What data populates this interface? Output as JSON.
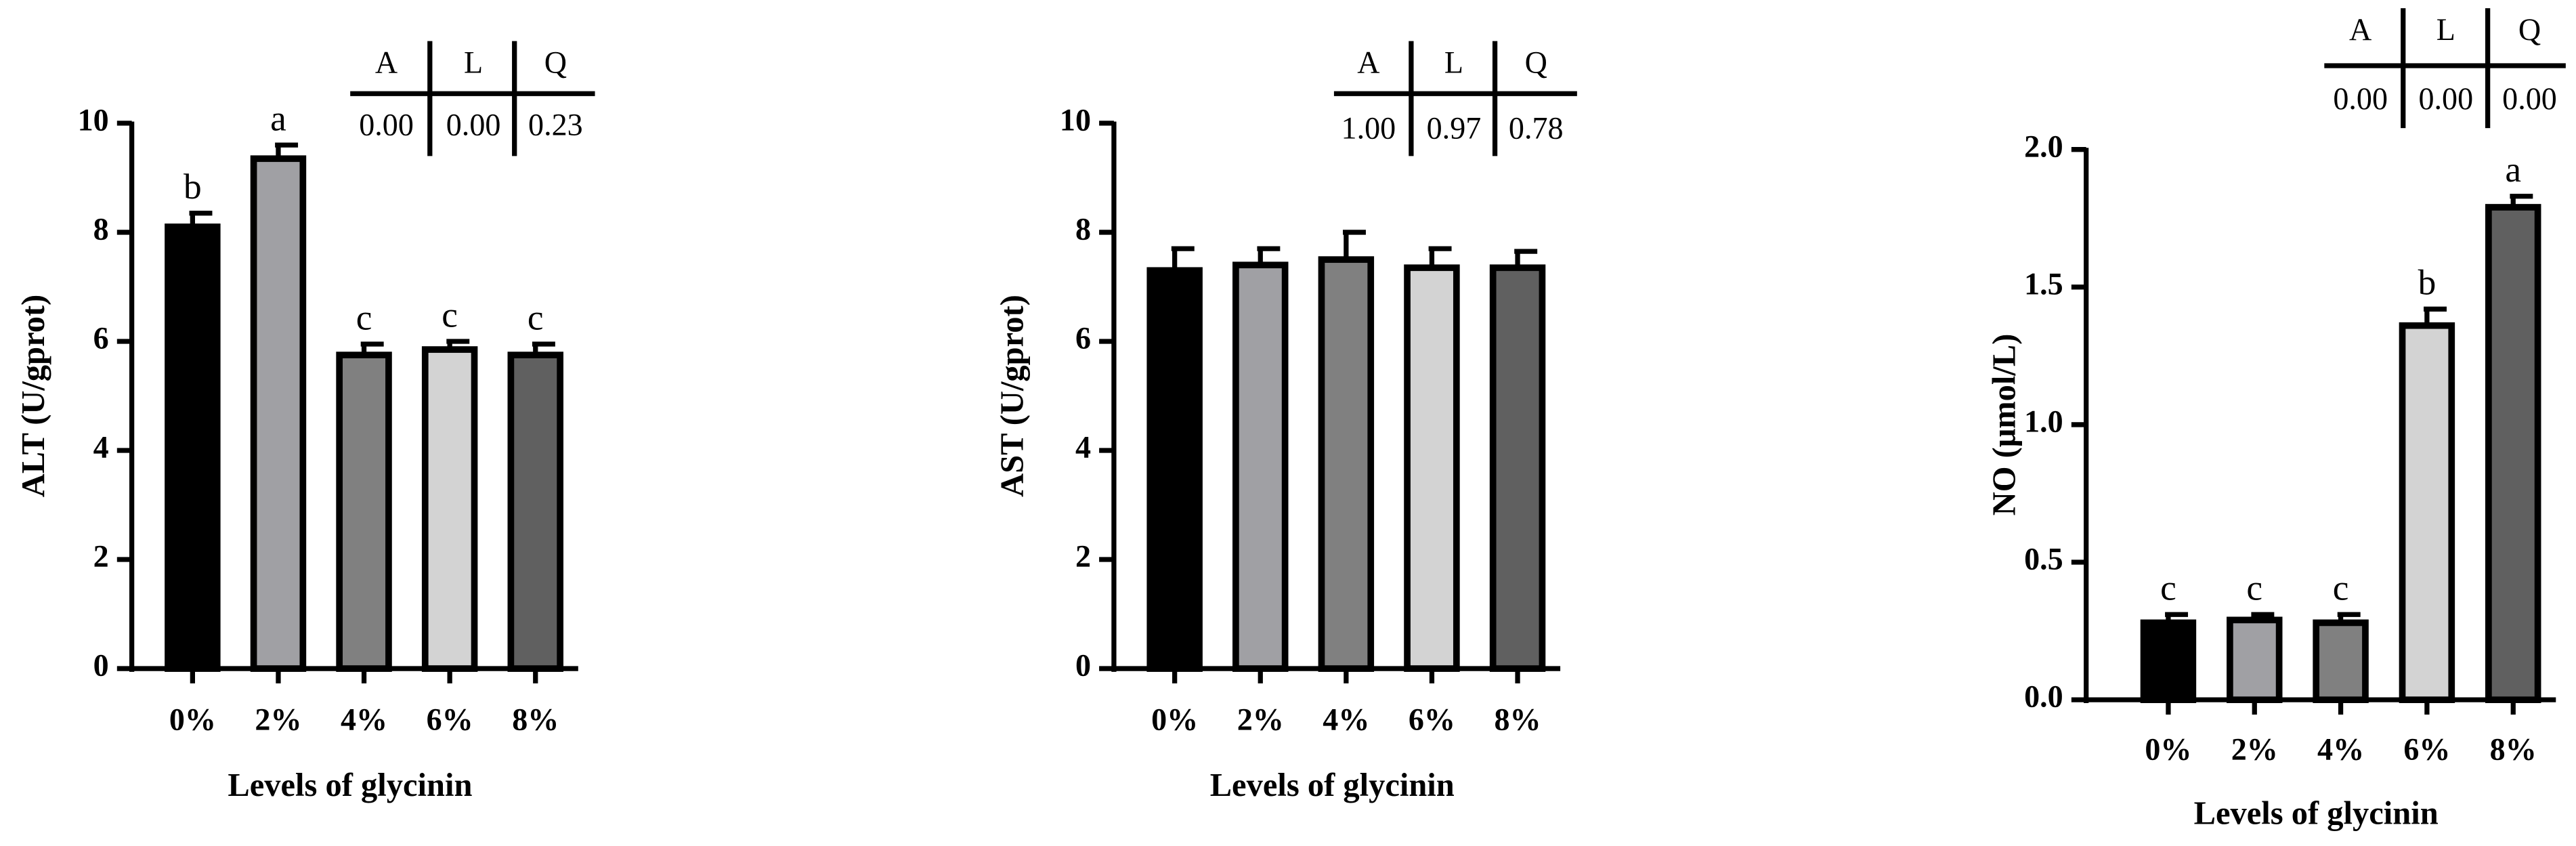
{
  "chart_data": [
    {
      "type": "bar",
      "ylabel": "ALT (U/gprot)",
      "xlabel": "Levels of glycinin",
      "categories": [
        "0%",
        "2%",
        "4%",
        "6%",
        "8%"
      ],
      "values": [
        8.1,
        9.35,
        5.75,
        5.85,
        5.75
      ],
      "errors": [
        0.25,
        0.25,
        0.2,
        0.15,
        0.2
      ],
      "letters": [
        "b",
        "a",
        "c",
        "c",
        "c"
      ],
      "colors": [
        "#000000",
        "#a0a0a4",
        "#808080",
        "#d3d3d3",
        "#606060"
      ],
      "ylim": [
        0,
        10
      ],
      "yticks": [
        0,
        2,
        4,
        6,
        8,
        10
      ],
      "table": {
        "header": [
          "A",
          "L",
          "Q"
        ],
        "row": [
          "0.00",
          "0.00",
          "0.23"
        ]
      }
    },
    {
      "type": "bar",
      "ylabel": "AST (U/gprot)",
      "xlabel": "Levels of glycinin",
      "categories": [
        "0%",
        "2%",
        "4%",
        "6%",
        "8%"
      ],
      "values": [
        7.3,
        7.4,
        7.5,
        7.35,
        7.35
      ],
      "errors": [
        0.4,
        0.3,
        0.5,
        0.35,
        0.3
      ],
      "colors": [
        "#000000",
        "#a0a0a4",
        "#808080",
        "#d3d3d3",
        "#606060"
      ],
      "ylim": [
        0,
        10
      ],
      "yticks": [
        0,
        2,
        4,
        6,
        8,
        10
      ],
      "table": {
        "header": [
          "A",
          "L",
          "Q"
        ],
        "row": [
          "1.00",
          "0.97",
          "0.78"
        ]
      }
    },
    {
      "type": "bar",
      "ylabel": "NO (μmol/L)",
      "xlabel": "Levels of glycinin",
      "categories": [
        "0%",
        "2%",
        "4%",
        "6%",
        "8%"
      ],
      "values": [
        0.28,
        0.29,
        0.28,
        1.36,
        1.79
      ],
      "errors": [
        0.03,
        0.02,
        0.03,
        0.06,
        0.04
      ],
      "letters": [
        "c",
        "c",
        "c",
        "b",
        "a"
      ],
      "colors": [
        "#000000",
        "#a0a0a4",
        "#808080",
        "#d3d3d3",
        "#606060"
      ],
      "ylim": [
        0,
        2
      ],
      "yticks": [
        {
          "value": 0,
          "label": "0.0"
        },
        0.5,
        {
          "value": 1,
          "label": "1.0"
        },
        1.5,
        {
          "value": 2,
          "label": "2.0"
        }
      ],
      "table": {
        "header": [
          "A",
          "L",
          "Q"
        ],
        "row": [
          "0.00",
          "0.00",
          "0.00"
        ]
      }
    }
  ]
}
